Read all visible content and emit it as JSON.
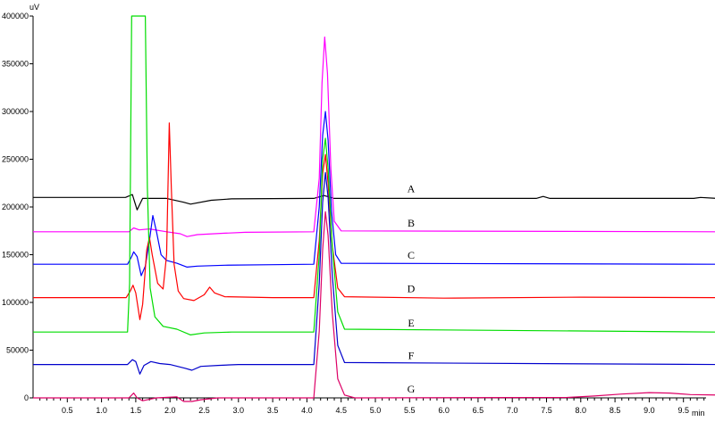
{
  "chart_data": {
    "type": "line",
    "y_unit": "uV",
    "x_unit": "min",
    "xlim": [
      0,
      10.0
    ],
    "ylim": [
      0,
      400000
    ],
    "x_ticks": [
      0.5,
      1.0,
      1.5,
      2.0,
      2.5,
      3.0,
      3.5,
      4.0,
      4.5,
      5.0,
      5.5,
      6.0,
      6.5,
      7.0,
      7.5,
      8.0,
      8.5,
      9.0,
      9.5
    ],
    "x_tick_labels": [
      "0.5",
      "1.0",
      "1.5",
      "2.0",
      "2.5",
      "3.0",
      "3.5",
      "4.0",
      "4.5",
      "5.0",
      "5.5",
      "6.0",
      "6.5",
      "7.0",
      "7.5",
      "8.0",
      "8.5",
      "9.0",
      "9.5"
    ],
    "y_ticks": [
      0,
      50000,
      100000,
      150000,
      200000,
      250000,
      300000,
      350000,
      400000
    ],
    "y_tick_labels": [
      "0",
      "50000",
      "100000",
      "150000",
      "200000",
      "250000",
      "300000",
      "350000",
      "400000"
    ],
    "grid": false,
    "series": [
      {
        "name": "A",
        "color": "#000000",
        "baseline": 210000,
        "points": [
          [
            0,
            210000
          ],
          [
            1.35,
            210000
          ],
          [
            1.45,
            213000
          ],
          [
            1.52,
            197000
          ],
          [
            1.6,
            209000
          ],
          [
            1.95,
            209000
          ],
          [
            2.2,
            205000
          ],
          [
            2.3,
            203000
          ],
          [
            2.6,
            207000
          ],
          [
            2.9,
            208500
          ],
          [
            4.1,
            209000
          ],
          [
            4.25,
            212000
          ],
          [
            4.4,
            209000
          ],
          [
            7.35,
            209000
          ],
          [
            7.45,
            211000
          ],
          [
            7.55,
            209000
          ],
          [
            9.65,
            209000
          ],
          [
            9.75,
            210000
          ],
          [
            10,
            209000
          ]
        ]
      },
      {
        "name": "B",
        "color": "#ff00ff",
        "baseline": 174000,
        "points": [
          [
            0,
            174000
          ],
          [
            1.4,
            174000
          ],
          [
            1.47,
            178000
          ],
          [
            1.55,
            176000
          ],
          [
            1.7,
            177000
          ],
          [
            1.95,
            174000
          ],
          [
            2.15,
            172000
          ],
          [
            2.25,
            169000
          ],
          [
            2.4,
            171000
          ],
          [
            2.8,
            172500
          ],
          [
            3.1,
            173500
          ],
          [
            4.1,
            174000
          ],
          [
            4.18,
            230000
          ],
          [
            4.22,
            330000
          ],
          [
            4.26,
            378000
          ],
          [
            4.3,
            340000
          ],
          [
            4.35,
            240000
          ],
          [
            4.4,
            185000
          ],
          [
            4.5,
            175000
          ],
          [
            10,
            174000
          ]
        ]
      },
      {
        "name": "C",
        "color": "#0000ff",
        "baseline": 140000,
        "points": [
          [
            0,
            140000
          ],
          [
            1.38,
            140000
          ],
          [
            1.44,
            148000
          ],
          [
            1.47,
            153000
          ],
          [
            1.52,
            148000
          ],
          [
            1.58,
            128000
          ],
          [
            1.64,
            138000
          ],
          [
            1.7,
            165000
          ],
          [
            1.75,
            191000
          ],
          [
            1.8,
            175000
          ],
          [
            1.87,
            150000
          ],
          [
            1.95,
            144000
          ],
          [
            2.1,
            141000
          ],
          [
            2.25,
            137000
          ],
          [
            2.4,
            138000
          ],
          [
            2.8,
            139000
          ],
          [
            3.5,
            139500
          ],
          [
            4.1,
            140000
          ],
          [
            4.18,
            200000
          ],
          [
            4.23,
            275000
          ],
          [
            4.27,
            300000
          ],
          [
            4.31,
            270000
          ],
          [
            4.36,
            195000
          ],
          [
            4.42,
            150000
          ],
          [
            4.5,
            141000
          ],
          [
            10,
            140000
          ]
        ]
      },
      {
        "name": "D",
        "color": "#ff0000",
        "baseline": 105000,
        "points": [
          [
            0,
            105000
          ],
          [
            1.36,
            105000
          ],
          [
            1.42,
            112000
          ],
          [
            1.46,
            118000
          ],
          [
            1.5,
            110000
          ],
          [
            1.56,
            82000
          ],
          [
            1.6,
            98000
          ],
          [
            1.66,
            155000
          ],
          [
            1.7,
            168000
          ],
          [
            1.74,
            150000
          ],
          [
            1.82,
            120000
          ],
          [
            1.9,
            114000
          ],
          [
            1.95,
            150000
          ],
          [
            1.99,
            288000
          ],
          [
            2.02,
            220000
          ],
          [
            2.06,
            140000
          ],
          [
            2.12,
            112000
          ],
          [
            2.2,
            104000
          ],
          [
            2.35,
            102000
          ],
          [
            2.5,
            108000
          ],
          [
            2.58,
            116000
          ],
          [
            2.65,
            110000
          ],
          [
            2.8,
            106000
          ],
          [
            3.5,
            105000
          ],
          [
            4.1,
            105000
          ],
          [
            4.18,
            165000
          ],
          [
            4.23,
            235000
          ],
          [
            4.27,
            255000
          ],
          [
            4.31,
            225000
          ],
          [
            4.37,
            160000
          ],
          [
            4.45,
            115000
          ],
          [
            4.55,
            106000
          ],
          [
            6,
            104500
          ],
          [
            8,
            105500
          ],
          [
            10,
            105000
          ]
        ]
      },
      {
        "name": "E",
        "color": "#00dd00",
        "baseline": 69000,
        "points": [
          [
            0,
            69000
          ],
          [
            1.38,
            69000
          ],
          [
            1.41,
            120000
          ],
          [
            1.44,
            400000
          ],
          [
            1.64,
            400000
          ],
          [
            1.67,
            220000
          ],
          [
            1.71,
            115000
          ],
          [
            1.78,
            85000
          ],
          [
            1.9,
            75000
          ],
          [
            2.1,
            72000
          ],
          [
            2.3,
            66000
          ],
          [
            2.5,
            68000
          ],
          [
            2.9,
            69000
          ],
          [
            4.1,
            69000
          ],
          [
            4.18,
            150000
          ],
          [
            4.23,
            250000
          ],
          [
            4.27,
            272000
          ],
          [
            4.31,
            240000
          ],
          [
            4.37,
            160000
          ],
          [
            4.45,
            90000
          ],
          [
            4.55,
            72000
          ],
          [
            10,
            69000
          ]
        ]
      },
      {
        "name": "F",
        "color": "#0000cc",
        "baseline": 35000,
        "points": [
          [
            0,
            35000
          ],
          [
            1.38,
            35000
          ],
          [
            1.45,
            40000
          ],
          [
            1.5,
            38000
          ],
          [
            1.56,
            25000
          ],
          [
            1.62,
            34000
          ],
          [
            1.72,
            38000
          ],
          [
            1.85,
            36000
          ],
          [
            2.0,
            35000
          ],
          [
            2.22,
            31000
          ],
          [
            2.32,
            29000
          ],
          [
            2.45,
            33000
          ],
          [
            2.7,
            34000
          ],
          [
            3.0,
            35000
          ],
          [
            4.1,
            35000
          ],
          [
            4.18,
            120000
          ],
          [
            4.23,
            205000
          ],
          [
            4.27,
            236000
          ],
          [
            4.31,
            210000
          ],
          [
            4.37,
            130000
          ],
          [
            4.45,
            55000
          ],
          [
            4.55,
            37000
          ],
          [
            10,
            35000
          ]
        ]
      },
      {
        "name": "G",
        "color": "#dd0066",
        "baseline": 0,
        "points": [
          [
            0,
            0
          ],
          [
            1.4,
            0
          ],
          [
            1.47,
            5000
          ],
          [
            1.52,
            0
          ],
          [
            1.6,
            -3000
          ],
          [
            1.8,
            0
          ],
          [
            2.1,
            1000
          ],
          [
            2.2,
            -4000
          ],
          [
            2.32,
            -6000
          ],
          [
            2.45,
            -2000
          ],
          [
            2.7,
            0
          ],
          [
            4.1,
            0
          ],
          [
            4.18,
            70000
          ],
          [
            4.23,
            155000
          ],
          [
            4.27,
            195000
          ],
          [
            4.31,
            170000
          ],
          [
            4.37,
            90000
          ],
          [
            4.45,
            20000
          ],
          [
            4.55,
            3000
          ],
          [
            4.7,
            0
          ],
          [
            7.8,
            500
          ],
          [
            8.2,
            2000
          ],
          [
            8.6,
            4000
          ],
          [
            9.0,
            5500
          ],
          [
            9.3,
            5000
          ],
          [
            9.6,
            3500
          ],
          [
            10,
            3000
          ]
        ]
      }
    ]
  }
}
